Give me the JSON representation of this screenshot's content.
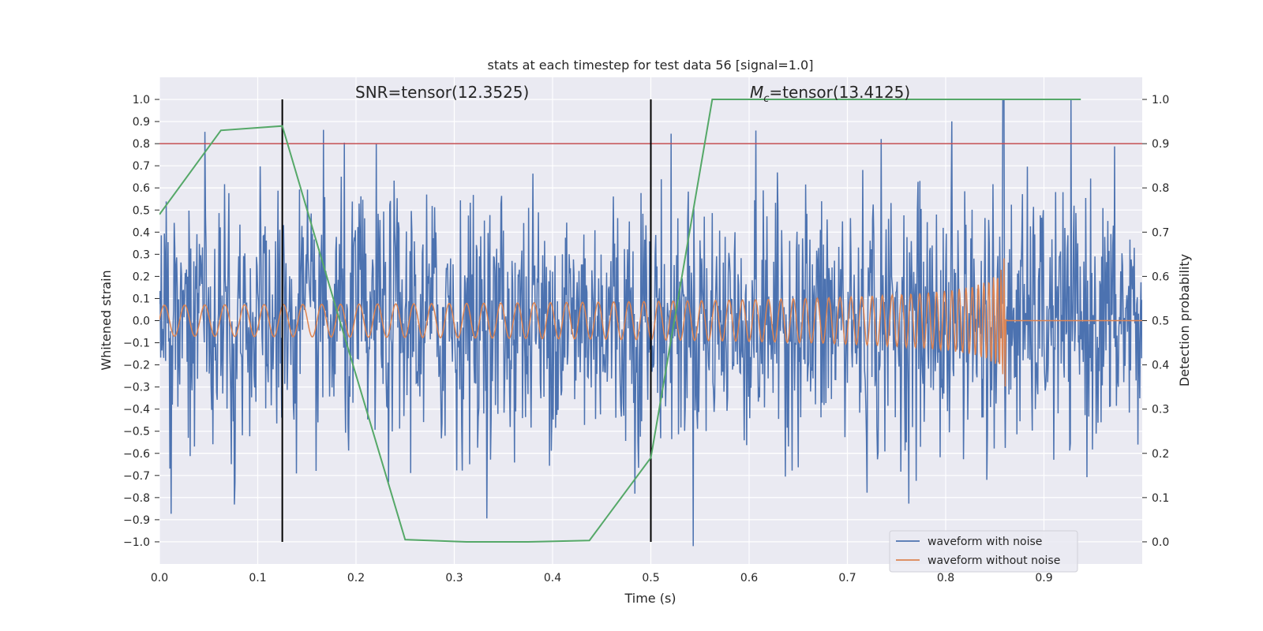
{
  "chart_data": {
    "type": "line",
    "title": "stats at each timestep for test data 56 [signal=1.0]",
    "xlabel": "Time (s)",
    "ylabel": "Whitened strain",
    "y2label": "Detection probability",
    "xlim": [
      0.0,
      1.0
    ],
    "ylim": [
      -1.1,
      1.1
    ],
    "y2lim": [
      -0.05,
      1.05
    ],
    "grid": true,
    "legend_position": "lower-right",
    "x_ticks": [
      "0.0",
      "0.1",
      "0.2",
      "0.3",
      "0.4",
      "0.5",
      "0.6",
      "0.7",
      "0.8",
      "0.9"
    ],
    "y_ticks": [
      "1.0",
      "0.9",
      "0.8",
      "0.7",
      "0.6",
      "0.5",
      "0.4",
      "0.3",
      "0.2",
      "0.1",
      "0.0",
      "−0.1",
      "−0.2",
      "−0.3",
      "−0.4",
      "−0.5",
      "−0.6",
      "−0.7",
      "−0.8",
      "−0.9",
      "−1.0"
    ],
    "y2_ticks": [
      "1.0",
      "0.9",
      "0.8",
      "0.7",
      "0.6",
      "0.5",
      "0.4",
      "0.3",
      "0.2",
      "0.1",
      "0.0"
    ],
    "annotations": {
      "snr_text": "SNR=tensor(12.3525)",
      "mc_symbol": "M",
      "mc_sub": "c",
      "mc_text": "=tensor(13.4125)"
    },
    "vertical_markers": [
      0.125,
      0.5
    ],
    "threshold_line": {
      "y2": 0.9,
      "color": "#c44e52"
    },
    "detection_probability": {
      "x": [
        0.0,
        0.0625,
        0.125,
        0.1875,
        0.25,
        0.3125,
        0.375,
        0.4375,
        0.5,
        0.5625,
        0.625,
        0.6875,
        0.75,
        0.8125,
        0.875,
        0.9375
      ],
      "y": [
        0.74,
        0.93,
        0.94,
        0.47,
        0.005,
        0.0,
        0.0,
        0.003,
        0.19,
        1.0,
        1.0,
        1.0,
        1.0,
        1.0,
        1.0,
        1.0
      ],
      "color": "#55a868"
    },
    "series": [
      {
        "name": "waveform with noise",
        "color": "#4c72b0"
      },
      {
        "name": "waveform without noise",
        "color": "#dd8452"
      }
    ]
  }
}
